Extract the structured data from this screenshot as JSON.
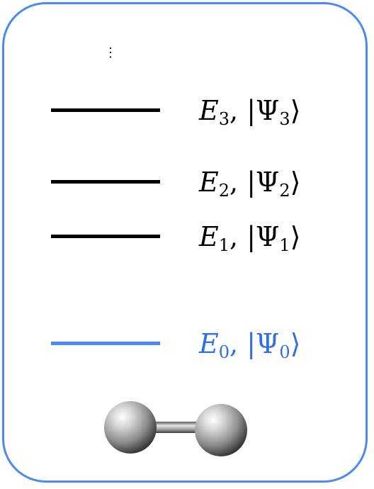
{
  "ellipsis": "⋮",
  "levels": [
    {
      "E": "E",
      "sub": "3",
      "comma": ",",
      "bar": "|",
      "psi": "Ψ",
      "psub": "3",
      "ket": "⟩"
    },
    {
      "E": "E",
      "sub": "2",
      "comma": ",",
      "bar": "|",
      "psi": "Ψ",
      "psub": "2",
      "ket": "⟩"
    },
    {
      "E": "E",
      "sub": "1",
      "comma": ",",
      "bar": "|",
      "psi": "Ψ",
      "psub": "1",
      "ket": "⟩"
    },
    {
      "E": "E",
      "sub": "0",
      "comma": ",",
      "bar": "|",
      "psi": "Ψ",
      "psub": "0",
      "ket": "⟩"
    }
  ],
  "colors": {
    "border": "#4a8af2",
    "excited_level": "#000000",
    "ground_level": "#4a8af2",
    "ground_label": "#2f6fe6",
    "atom": "#9a9a9a"
  },
  "icons": {
    "molecule": "diatomic-molecule-icon"
  }
}
